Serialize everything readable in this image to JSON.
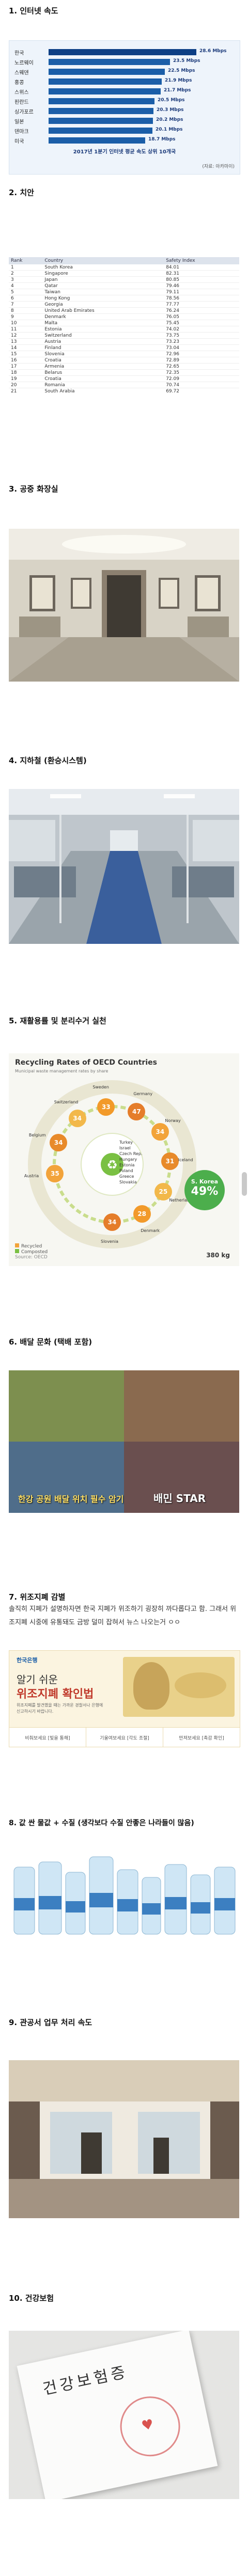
{
  "s1": {
    "title": "1. 인터넷 속도",
    "rows": [
      {
        "country": "한국",
        "value": 28.6,
        "label": "28.6 Mbps"
      },
      {
        "country": "노르웨이",
        "value": 23.5,
        "label": "23.5 Mbps"
      },
      {
        "country": "스웨덴",
        "value": 22.5,
        "label": "22.5 Mbps"
      },
      {
        "country": "홍콩",
        "value": 21.9,
        "label": "21.9 Mbps"
      },
      {
        "country": "스위스",
        "value": 21.7,
        "label": "21.7 Mbps"
      },
      {
        "country": "핀란드",
        "value": 20.5,
        "label": "20.5 Mbps"
      },
      {
        "country": "싱가포르",
        "value": 20.3,
        "label": "20.3 Mbps"
      },
      {
        "country": "일본",
        "value": 20.2,
        "label": "20.2 Mbps"
      },
      {
        "country": "덴마크",
        "value": 20.1,
        "label": "20.1 Mbps"
      },
      {
        "country": "미국",
        "value": 18.7,
        "label": "18.7 Mbps"
      }
    ],
    "caption": "2017년 1분기 인터넷 평균 속도 상위 10개국",
    "source": "(자료: 아카마이)"
  },
  "s2": {
    "title": "2. 치안",
    "headers": [
      "Rank",
      "Country",
      "Safety Index"
    ],
    "rows": [
      [
        "1",
        "South Korea",
        "84.01"
      ],
      [
        "2",
        "Singapore",
        "82.31"
      ],
      [
        "3",
        "Japan",
        "80.85"
      ],
      [
        "4",
        "Qatar",
        "79.46"
      ],
      [
        "5",
        "Taiwan",
        "79.11"
      ],
      [
        "6",
        "Hong Kong",
        "78.56"
      ],
      [
        "7",
        "Georgia",
        "77.77"
      ],
      [
        "8",
        "United Arab Emirates",
        "76.24"
      ],
      [
        "9",
        "Denmark",
        "76.05"
      ],
      [
        "10",
        "Malta",
        "75.45"
      ],
      [
        "11",
        "Estonia",
        "74.02"
      ],
      [
        "12",
        "Switzerland",
        "73.75"
      ],
      [
        "13",
        "Austria",
        "73.23"
      ],
      [
        "14",
        "Finland",
        "73.04"
      ],
      [
        "15",
        "Slovenia",
        "72.96"
      ],
      [
        "16",
        "Croatia",
        "72.89"
      ],
      [
        "17",
        "Armenia",
        "72.65"
      ],
      [
        "18",
        "Belarus",
        "72.35"
      ],
      [
        "19",
        "Croatia",
        "72.09"
      ],
      [
        "20",
        "Romania",
        "70.74"
      ],
      [
        "21",
        "South Arabia",
        "69.72"
      ]
    ]
  },
  "s3": {
    "title": "3. 공중 화장실"
  },
  "s4": {
    "title": "4. 지하철 (환승시스템)"
  },
  "s5": {
    "title": "5. 재활용률 및 분리수거 실천",
    "chart_title": "Recycling Rates of OECD Countries",
    "chart_subtitle": "Municipal waste management rates by share",
    "hero_country": "S. Korea",
    "hero_value": "49%",
    "bubbles": [
      {
        "name": "Austria",
        "value": "35"
      },
      {
        "name": "Belgium",
        "value": "34"
      },
      {
        "name": "Switzerland",
        "value": "34"
      },
      {
        "name": "Sweden",
        "value": "33"
      },
      {
        "name": "Germany",
        "value": "47"
      },
      {
        "name": "Norway",
        "value": "34"
      },
      {
        "name": "Iceland",
        "value": "31"
      },
      {
        "name": "Netherlands",
        "value": "25"
      },
      {
        "name": "Denmark",
        "value": "28"
      },
      {
        "name": "Slovenia",
        "value": "34"
      }
    ],
    "inner_countries": [
      "Turkey",
      "Israel",
      "Czech Rep.",
      "Hungary",
      "Estonia",
      "Poland",
      "Greece",
      "Slovakia"
    ],
    "legend_recycled": "Recycled",
    "legend_composted": "Composted",
    "source": "Source: OECD",
    "footer": "380 kg"
  },
  "s6": {
    "title": "6. 배달 문화 (택배 포함)",
    "caption_left": "한강 공원 배달 위치 필수 암기",
    "caption_right": "배민 STAR"
  },
  "s7": {
    "title": "7. 위조지폐 감별",
    "paragraph": "솔직히 지폐가 설명하자면 한국 지폐가 위조하기 굉장히 까다롭다고 함. 그래서 위조지폐 시중에 유통돼도 금방 덜미 잡혀서 뉴스 나오는거 ㅇㅇ",
    "bank_name": "한국은행",
    "banner_title_small": "알기 쉬운",
    "banner_title": "위조지폐 확인법",
    "banner_desc": "위조지폐를 발견했을 때는 가까운 경찰서나 은행에 신고하시기 바랍니다.",
    "tabs": [
      "비춰보세요 [빛을 통해]",
      "기울여보세요 [각도 조절]",
      "만져보세요 [촉감 확인]"
    ]
  },
  "s8": {
    "title": "8. 값 싼 물값 + 수질 (생각보다 수질 안좋은 나라들이 많음)"
  },
  "s9": {
    "title": "9. 관공서 업무 처리 속도"
  },
  "s10": {
    "title": "10. 건강보험",
    "card_text": "건강보험증"
  }
}
